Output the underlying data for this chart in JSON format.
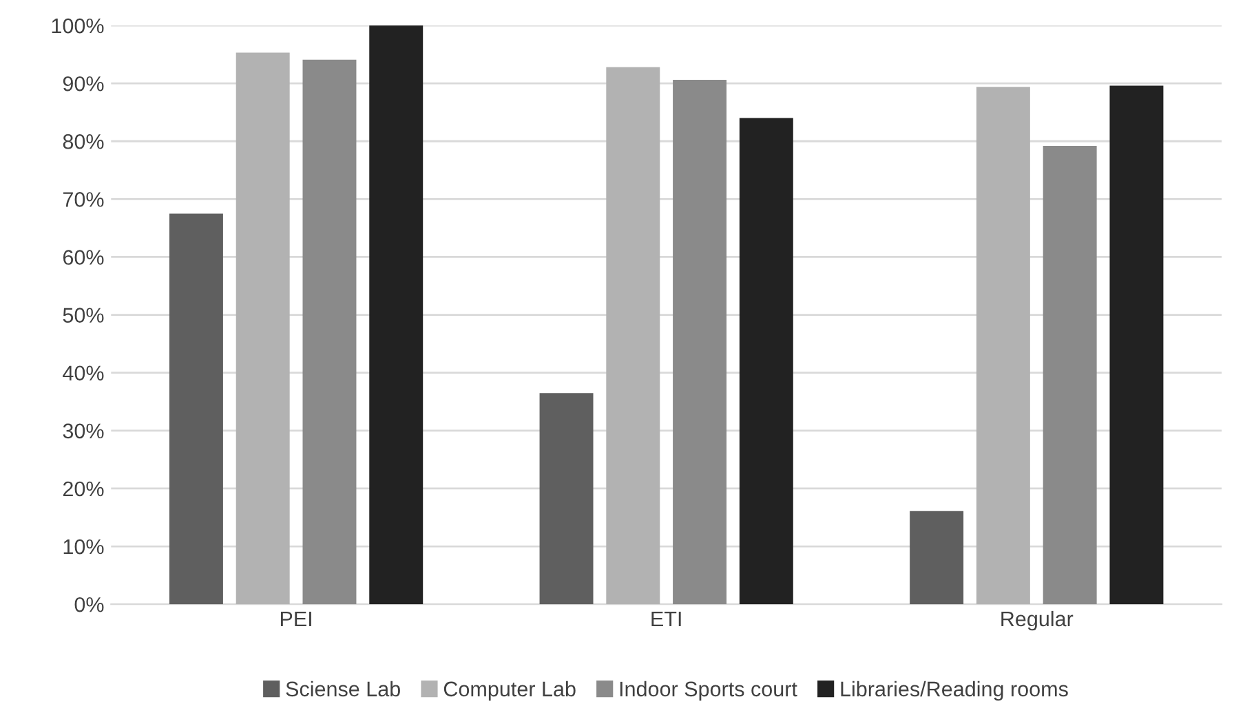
{
  "chart_data": {
    "type": "bar",
    "categories": [
      "PEI",
      "ETI",
      "Regular"
    ],
    "series": [
      {
        "name": "Sciense Lab",
        "color": "#5f5f5f",
        "values": [
          67.5,
          36.5,
          16.1
        ]
      },
      {
        "name": "Computer Lab",
        "color": "#b2b2b2",
        "values": [
          95.3,
          92.8,
          89.4
        ]
      },
      {
        "name": "Indoor Sports court",
        "color": "#8a8a8a",
        "values": [
          94.1,
          90.6,
          79.2
        ]
      },
      {
        "name": "Libraries/Reading rooms",
        "color": "#222222",
        "values": [
          100,
          84.0,
          89.6
        ]
      }
    ],
    "ylim": [
      0,
      100
    ],
    "yticks": [
      {
        "value": 0,
        "label": "0%"
      },
      {
        "value": 10,
        "label": "10%"
      },
      {
        "value": 20,
        "label": "20%"
      },
      {
        "value": 30,
        "label": "30%"
      },
      {
        "value": 40,
        "label": "40%"
      },
      {
        "value": 50,
        "label": "50%"
      },
      {
        "value": 60,
        "label": "60%"
      },
      {
        "value": 70,
        "label": "70%"
      },
      {
        "value": 80,
        "label": "80%"
      },
      {
        "value": 90,
        "label": "90%"
      },
      {
        "value": 100,
        "label": "100%"
      }
    ],
    "grid": "y",
    "legend": "bottom"
  }
}
